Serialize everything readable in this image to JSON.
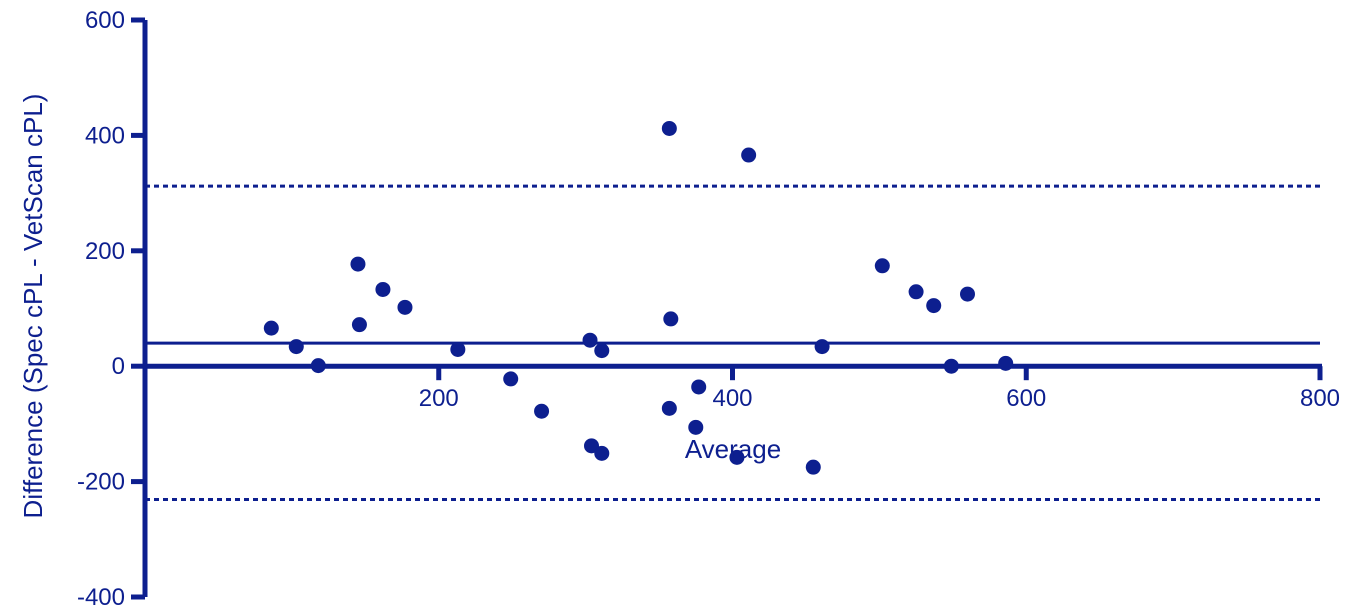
{
  "chart_data": {
    "type": "scatter",
    "title": "",
    "xlabel": "Average",
    "ylabel": "Difference (Spec cPL - VetScan cPL)",
    "xlim": [
      0,
      800
    ],
    "ylim": [
      -400,
      600
    ],
    "x_ticks": [
      200,
      400,
      600,
      800
    ],
    "x_tick_labels": [
      "200",
      "400",
      "600",
      "800"
    ],
    "y_ticks": [
      -400,
      -200,
      0,
      200,
      400,
      600
    ],
    "y_tick_labels": [
      "-400",
      "-200",
      "0",
      "200",
      "400",
      "600"
    ],
    "grid": false,
    "color": "#0d1f8f",
    "reference_lines": [
      {
        "kind": "zero",
        "y": 0,
        "style": "solid"
      },
      {
        "kind": "mean-bias",
        "y": 40,
        "style": "solid"
      },
      {
        "kind": "upper-limit",
        "y": 312,
        "style": "dotted"
      },
      {
        "kind": "lower-limit",
        "y": -231,
        "style": "dotted"
      }
    ],
    "points": [
      {
        "x": 86,
        "y": 66
      },
      {
        "x": 103,
        "y": 34
      },
      {
        "x": 118,
        "y": 1
      },
      {
        "x": 145,
        "y": 177
      },
      {
        "x": 146,
        "y": 72
      },
      {
        "x": 162,
        "y": 133
      },
      {
        "x": 177,
        "y": 102
      },
      {
        "x": 213,
        "y": 29
      },
      {
        "x": 249,
        "y": -22
      },
      {
        "x": 270,
        "y": -78
      },
      {
        "x": 303,
        "y": 45
      },
      {
        "x": 304,
        "y": -138
      },
      {
        "x": 311,
        "y": 27
      },
      {
        "x": 311,
        "y": -151
      },
      {
        "x": 357,
        "y": 412
      },
      {
        "x": 357,
        "y": -73
      },
      {
        "x": 358,
        "y": 82
      },
      {
        "x": 375,
        "y": -106
      },
      {
        "x": 377,
        "y": -36
      },
      {
        "x": 403,
        "y": -158
      },
      {
        "x": 411,
        "y": 366
      },
      {
        "x": 455,
        "y": -175
      },
      {
        "x": 461,
        "y": 34
      },
      {
        "x": 502,
        "y": 174
      },
      {
        "x": 525,
        "y": 129
      },
      {
        "x": 537,
        "y": 105
      },
      {
        "x": 549,
        "y": 0
      },
      {
        "x": 560,
        "y": 125
      },
      {
        "x": 586,
        "y": 5
      }
    ]
  }
}
